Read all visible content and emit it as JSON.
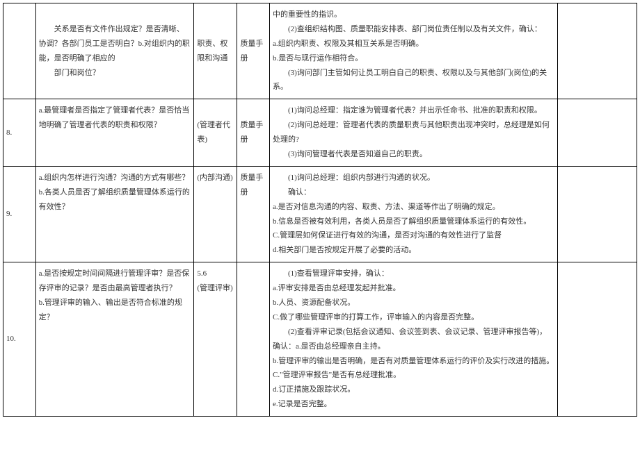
{
  "rows": [
    {
      "num": "",
      "question": "　　关系是否有文件作出规定？是否清晰、协调？各部门员工是否明白？b.对组织内的职能，是否明确了相应的\n　　部门和岗位？",
      "clause": "职责、权限和沟通",
      "doc": "质量手册",
      "detail": "中的重要性的指识。\n　　(2)查组织结构图、质量职能安排表、部门岗位责任制以及有关文件，确认：\na.组织内职责、权限及其相互关系是否明确。\nb.是否与现行运作相符合。\n　　(3)询问部门主管如何让员工明白自己的职责、权限以及与其他部门(岗位)的关系。"
    },
    {
      "num": "8.",
      "question": "a.最管理者是否指定了管理者代表？是否恰当地明确了管理者代表的职责和权限？",
      "clause": "(管理者代表)",
      "doc": "质量手册",
      "detail": "　　(1)询问总经理：指定谁为管理者代表？并出示任命书、批准的职责和权限。\n　　(2)询问总经理：管理者代表的质量职责与其他职责出现冲突时，总经理是如何处理的?\n　　(3)询问管理者代表是否知道自己的职责。"
    },
    {
      "num": "9.",
      "question": "a.组织内怎样进行沟通？沟通的方式有哪些？\nb.各类人员是否了解组织质量管理体系运行的有效性？",
      "clause": "(内部沟通)",
      "doc": "质量手册",
      "detail": "　　(1)询问总经理：组织内部进行沟通的状况。\n　　确认：\na.是否对信息沟通的内容、取责、方法、渠道等作出了明确的规定。\nb.信息是否被有效利用，各类人员是否了解组织质量管理体系运行的有效性。\nC.管理层如何保证进行有效的沟通，是否对沟通的有效性进行了监督\nd.相关部门是否按规定开展了必要的活动。"
    },
    {
      "num": "10.",
      "question": "a.是否按规定时间间隔进行管理评审？是否保存评审的记录？是否由最高管理者执行？\nb.管理评审的输入、输出是否符合标准的规定？",
      "clause": "5.6\n(管理评审)",
      "doc": "",
      "detail": "　　(1)查看管理评审安排，确认：\na.评审安排是否由总经理发起并批准。\nb.人员、资源配备状况。\nC.做了哪些管理评审的打算工作，评审输入的内容是否完整。\n　　(2)查看评审记录(包括会议通知、会议签到表、会议记录、管理评审报告等)，确认：a.是否由总经理亲自主持。\nb.管理评审的输出是否明确，是否有对质量管理体系运行的评价及实行改进的措施。\nC.\"管理评审报告\"是否有总经理批准。\nd.订正措施及跟踪状况。\ne.记录是否完整。"
    }
  ]
}
